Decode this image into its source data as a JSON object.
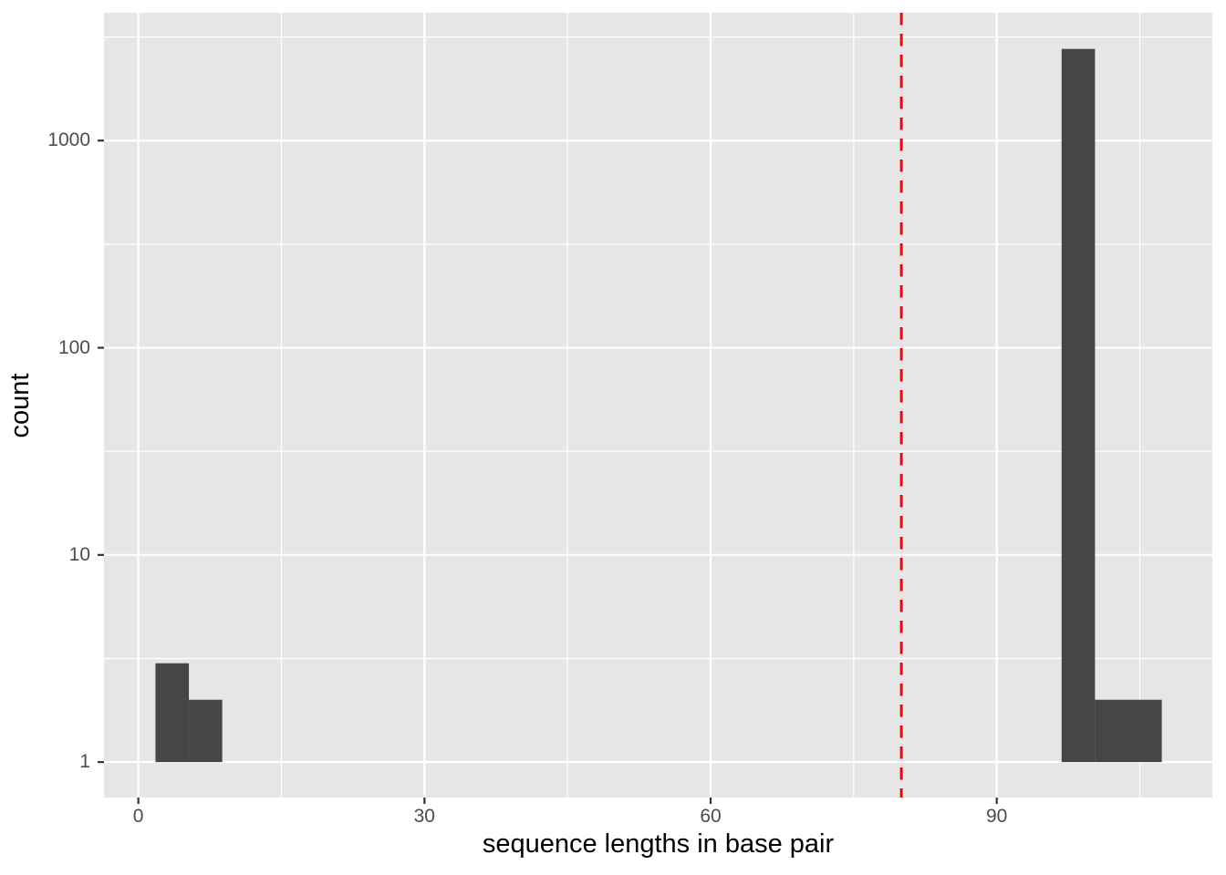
{
  "chart_data": {
    "type": "bar",
    "subtype": "histogram",
    "title": "",
    "xlabel": "sequence lengths in base pair",
    "ylabel": "count",
    "x_axis": {
      "tick_labels": [
        "0",
        "30",
        "60",
        "90"
      ],
      "tick_values": [
        0,
        30,
        60,
        90
      ],
      "minor_tick_values": [
        15,
        45,
        75,
        105
      ],
      "domain": [
        -3.6,
        112.6
      ],
      "grid": true
    },
    "y_axis": {
      "scale": "log10",
      "tick_labels": [
        "1",
        "10",
        "100",
        "1000"
      ],
      "tick_values": [
        1,
        10,
        100,
        1000
      ],
      "minor_tick_values": [
        3.162,
        31.62,
        316.2,
        3162.3
      ],
      "domain_log10": [
        -0.171,
        3.617
      ],
      "grid": true
    },
    "bars": [
      {
        "xmin": 1.8,
        "xmax": 5.3,
        "count": 3
      },
      {
        "xmin": 5.3,
        "xmax": 8.8,
        "count": 2
      },
      {
        "xmin": 96.8,
        "xmax": 100.3,
        "count": 2770
      },
      {
        "xmin": 100.3,
        "xmax": 107.3,
        "count": 2
      }
    ],
    "vline": {
      "x": 80,
      "color": "#FF0000",
      "linetype": "dashed"
    },
    "legend": "none",
    "style": {
      "panel_bg": "#E6E6E6",
      "bar_fill": "#464646",
      "grid_color": "#FFFFFF",
      "tick_mark_color": "#333333",
      "tick_label_color": "#4D4D4D",
      "axis_title_color": "#000000",
      "figure_bg": "#FFFFFF"
    }
  }
}
